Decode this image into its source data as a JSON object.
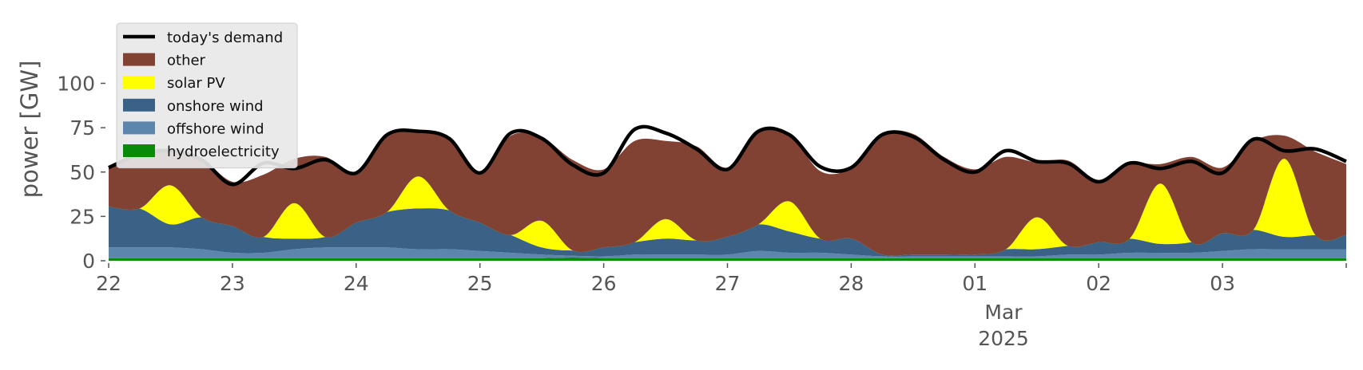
{
  "chart_data": {
    "type": "area",
    "ylabel": "power [GW]",
    "xlabel": "",
    "ylim": [
      0,
      120
    ],
    "xlim": [
      "2025-02-22T00:00",
      "2025-03-04T00:00"
    ],
    "grid": false,
    "legend_position": "top-left",
    "yticks": [
      0,
      25,
      50,
      75,
      100
    ],
    "ytick_labels": [
      "0",
      "25",
      "50",
      "75",
      "100"
    ],
    "xticks": [
      {
        "date": "2025-02-22",
        "label": "22"
      },
      {
        "date": "2025-02-23",
        "label": "23"
      },
      {
        "date": "2025-02-24",
        "label": "24"
      },
      {
        "date": "2025-02-25",
        "label": "25"
      },
      {
        "date": "2025-02-26",
        "label": "26"
      },
      {
        "date": "2025-02-27",
        "label": "27"
      },
      {
        "date": "2025-02-28",
        "label": "28"
      },
      {
        "date": "2025-03-01",
        "label": "01"
      },
      {
        "date": "2025-03-02",
        "label": "02"
      },
      {
        "date": "2025-03-03",
        "label": "03"
      }
    ],
    "month_label": "Mar",
    "year_label": "2025",
    "legend": [
      {
        "label": "today's demand",
        "kind": "line",
        "color": "#000000"
      },
      {
        "label": "other",
        "kind": "area",
        "color": "#814234"
      },
      {
        "label": "solar PV",
        "kind": "area",
        "color": "#ffff00"
      },
      {
        "label": "onshore wind",
        "kind": "area",
        "color": "#3a6186"
      },
      {
        "label": "offshore wind",
        "kind": "area",
        "color": "#5d86ad"
      },
      {
        "label": "hydroelectricity",
        "kind": "area",
        "color": "#0a8a0a"
      }
    ],
    "x": [
      "2025-02-22T00:00",
      "2025-02-22T06:00",
      "2025-02-22T12:00",
      "2025-02-22T18:00",
      "2025-02-23T00:00",
      "2025-02-23T06:00",
      "2025-02-23T12:00",
      "2025-02-23T18:00",
      "2025-02-24T00:00",
      "2025-02-24T06:00",
      "2025-02-24T12:00",
      "2025-02-24T18:00",
      "2025-02-25T00:00",
      "2025-02-25T06:00",
      "2025-02-25T12:00",
      "2025-02-25T18:00",
      "2025-02-26T00:00",
      "2025-02-26T06:00",
      "2025-02-26T12:00",
      "2025-02-26T18:00",
      "2025-02-27T00:00",
      "2025-02-27T06:00",
      "2025-02-27T12:00",
      "2025-02-27T18:00",
      "2025-02-28T00:00",
      "2025-02-28T06:00",
      "2025-02-28T12:00",
      "2025-02-28T18:00",
      "2025-03-01T00:00",
      "2025-03-01T06:00",
      "2025-03-01T12:00",
      "2025-03-01T18:00",
      "2025-03-02T00:00",
      "2025-03-02T06:00",
      "2025-03-02T12:00",
      "2025-03-02T18:00",
      "2025-03-03T00:00",
      "2025-03-03T06:00",
      "2025-03-03T12:00",
      "2025-03-03T18:00",
      "2025-03-04T00:00"
    ],
    "series": [
      {
        "name": "hydroelectricity",
        "color": "#0a8a0a",
        "values": [
          1.5,
          1.5,
          1.5,
          1.5,
          1.5,
          1.5,
          1.5,
          1.5,
          1.5,
          1.5,
          1.5,
          1.5,
          1.5,
          1.5,
          1.5,
          1.8,
          1.5,
          1.5,
          1.5,
          1.5,
          1.5,
          1.5,
          1.5,
          1.5,
          1.5,
          1.5,
          1.5,
          1.5,
          1.5,
          1.5,
          1.5,
          1.5,
          1.5,
          1.5,
          1.5,
          1.5,
          1.5,
          1.5,
          1.5,
          1.5,
          1.5
        ]
      },
      {
        "name": "offshore wind",
        "color": "#5d86ad",
        "values": [
          6,
          6,
          6,
          5,
          3,
          3,
          5,
          6,
          6,
          6,
          5,
          5,
          4,
          3,
          2,
          1,
          1,
          2,
          2,
          2,
          2,
          4,
          3,
          3,
          2,
          1,
          1,
          1,
          1,
          1,
          1,
          2,
          2,
          3,
          3,
          3,
          4,
          5,
          5,
          5,
          5
        ]
      },
      {
        "name": "onshore wind",
        "color": "#3a6186",
        "values": [
          23,
          22,
          13,
          18,
          15,
          9,
          6,
          6,
          14,
          20,
          23,
          22,
          16,
          10,
          4,
          3,
          5,
          7,
          9,
          8,
          10,
          15,
          12,
          8,
          9,
          1,
          1,
          1,
          1,
          4,
          4,
          5,
          7,
          8,
          5,
          6,
          10,
          11,
          7,
          8,
          8
        ]
      },
      {
        "name": "solar PV",
        "color": "#ffff00",
        "values": [
          0,
          0,
          22,
          0,
          0,
          0,
          20,
          0,
          0,
          0,
          18,
          0,
          0,
          0,
          15,
          0,
          0,
          0,
          11,
          0,
          0,
          0,
          17,
          0,
          0,
          0,
          0,
          0,
          0,
          0,
          18,
          0,
          0,
          0,
          34,
          0,
          0,
          0,
          44,
          0,
          0
        ]
      },
      {
        "name": "other",
        "color": "#814234",
        "values": [
          22,
          30,
          19,
          33,
          25,
          35,
          25,
          45,
          28,
          43,
          25,
          40,
          28,
          56,
          47,
          51,
          44,
          57,
          44,
          53,
          39,
          52,
          38,
          38,
          40,
          68,
          68,
          55,
          48,
          52,
          31,
          48,
          35,
          42,
          11,
          48,
          37,
          50,
          13,
          47,
          40
        ]
      },
      {
        "name": "today's demand",
        "color": "#000000",
        "values": [
          52.5,
          60,
          62,
          57,
          43,
          55,
          52,
          57,
          49.5,
          71,
          73,
          69,
          49.5,
          72,
          69,
          54,
          49.5,
          74,
          72,
          63,
          51.5,
          73,
          71,
          53,
          52.5,
          71,
          70,
          57,
          50,
          62,
          56,
          55,
          44.5,
          55,
          52,
          56,
          49.5,
          68.5,
          62,
          63,
          56
        ]
      }
    ]
  }
}
